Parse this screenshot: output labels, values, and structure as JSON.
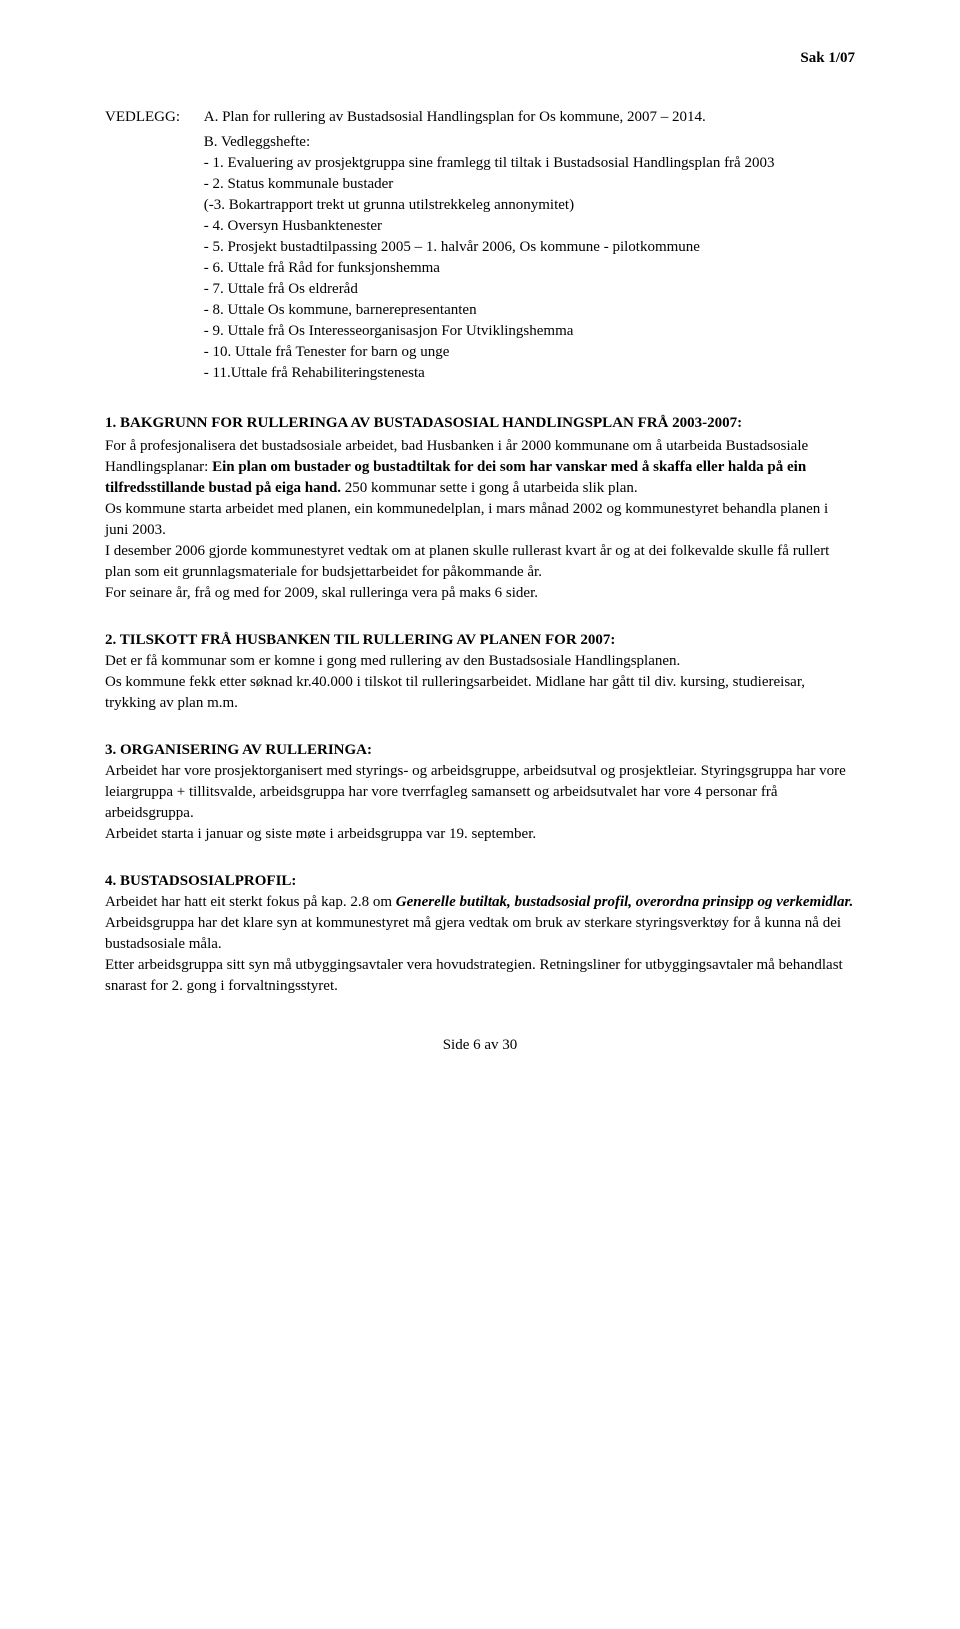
{
  "header": {
    "case_ref": "Sak 1/07"
  },
  "vedlegg": {
    "label": "VEDLEGG:",
    "main": "A. Plan for rullering av Bustadsosial Handlingsplan for Os kommune, 2007 – 2014.",
    "sublabel": "B. Vedleggshefte:",
    "items": [
      "- 1. Evaluering av prosjektgruppa sine framlegg til tiltak i Bustadsosial Handlingsplan frå 2003",
      "- 2. Status kommunale bustader",
      "(-3. Bokartrapport trekt ut grunna utilstrekkeleg annonymitet)",
      "- 4. Oversyn Husbanktenester",
      "- 5. Prosjekt bustadtilpassing 2005 – 1. halvår 2006, Os kommune - pilotkommune",
      "- 6. Uttale frå Råd for funksjonshemma",
      "- 7. Uttale frå Os eldreråd",
      "- 8. Uttale Os kommune, barnerepresentanten",
      "- 9. Uttale frå Os Interesseorganisasjon For Utviklingshemma",
      "- 10. Uttale frå Tenester for barn og unge",
      "- 11.Uttale frå Rehabiliteringstenesta"
    ]
  },
  "section1": {
    "heading": "1. BAKGRUNN FOR RULLERINGA AV BUSTADASOSIAL HANDLINGSPLAN FRÅ 2003-2007:",
    "p1_pre": "For å profesjonalisera det bustadsosiale arbeidet, bad Husbanken i år 2000 kommunane om å utarbeida Bustadsosiale Handlingsplanar: ",
    "p1_bold": "Ein plan om bustader og bustadtiltak for dei som har vanskar med å skaffa eller halda på ein tilfredsstillande bustad på eiga hand.",
    "p1_post": " 250 kommunar sette i gong å utarbeida slik plan.",
    "p2": "Os kommune starta arbeidet med planen, ein kommunedelplan, i mars månad 2002 og kommunestyret behandla planen i juni 2003.",
    "p3": "I desember 2006 gjorde kommunestyret vedtak om at planen skulle rullerast kvart år og at dei folkevalde skulle få rullert plan som eit grunnlagsmateriale for budsjettarbeidet for påkommande år.",
    "p4": "For seinare år, frå og med for 2009, skal rulleringa vera på maks 6 sider."
  },
  "section2": {
    "heading": "2. TILSKOTT FRÅ HUSBANKEN TIL RULLERING AV PLANEN FOR 2007:",
    "p1": "Det er få kommunar som er komne i gong med rullering av den Bustadsosiale Handlingsplanen.",
    "p2": "Os kommune fekk etter søknad kr.40.000 i tilskot til rulleringsarbeidet. Midlane har gått til div. kursing, studiereisar, trykking av plan m.m."
  },
  "section3": {
    "heading": "3. ORGANISERING AV RULLERINGA:",
    "p1": "Arbeidet har vore prosjektorganisert med styrings- og arbeidsgruppe, arbeidsutval og prosjektleiar. Styringsgruppa har vore leiargruppa + tillitsvalde, arbeidsgruppa har vore tverrfagleg samansett og arbeidsutvalet har vore 4 personar frå arbeidsgruppa.",
    "p2": "Arbeidet starta i januar og siste møte i arbeidsgruppa var 19. september."
  },
  "section4": {
    "heading": "4. BUSTADSOSIALPROFIL:",
    "p1_pre": "Arbeidet har hatt eit sterkt fokus på kap. 2.8 om ",
    "p1_ital": "Generelle butiltak, bustadsosial profil, overordna prinsipp og verkemidlar.",
    "p1_post": " Arbeidsgruppa har det klare syn at kommunestyret må gjera vedtak om bruk av sterkare styringsverktøy for å kunna nå dei bustadsosiale måla.",
    "p2": "Etter arbeidsgruppa sitt syn må utbyggingsavtaler vera hovudstrategien. Retningsliner for utbyggingsavtaler må behandlast snarast for 2. gong i forvaltningsstyret."
  },
  "footer": {
    "page": "Side 6 av 30"
  }
}
